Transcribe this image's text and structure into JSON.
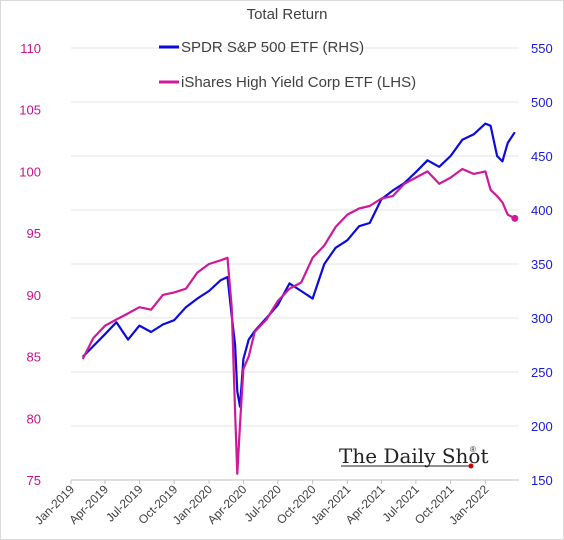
{
  "chart_data": {
    "type": "line",
    "title": "Total Return",
    "x_ticks": [
      "Jan-2019",
      "Apr-2019",
      "Jul-2019",
      "Oct-2019",
      "Jan-2020",
      "Apr-2020",
      "Jul-2020",
      "Oct-2020",
      "Jan-2021",
      "Apr-2021",
      "Jul-2021",
      "Oct-2021",
      "Jan-2022"
    ],
    "x_range": [
      "2019-01-01",
      "2022-03-31"
    ],
    "left_axis": {
      "ticks": [
        75,
        80,
        85,
        90,
        95,
        100,
        105,
        110
      ],
      "ylim": [
        75,
        110
      ],
      "color": "#cc1188"
    },
    "right_axis": {
      "ticks": [
        150,
        200,
        250,
        300,
        350,
        400,
        450,
        500,
        550
      ],
      "ylim": [
        150,
        550
      ],
      "color": "#1a1ad4"
    },
    "grid": "horizontal",
    "series": [
      {
        "name": "SPDR S&P 500 ETF (RHS)",
        "axis": "right",
        "color": "#0b0bdc",
        "x": [
          "2019-02-01",
          "2019-03-01",
          "2019-04-01",
          "2019-05-01",
          "2019-06-01",
          "2019-07-01",
          "2019-08-01",
          "2019-09-01",
          "2019-10-01",
          "2019-11-01",
          "2019-12-01",
          "2020-01-01",
          "2020-02-01",
          "2020-02-19",
          "2020-03-01",
          "2020-03-10",
          "2020-03-16",
          "2020-03-23",
          "2020-04-01",
          "2020-04-15",
          "2020-05-01",
          "2020-06-01",
          "2020-07-01",
          "2020-08-01",
          "2020-09-01",
          "2020-10-01",
          "2020-11-01",
          "2020-12-01",
          "2021-01-01",
          "2021-02-01",
          "2021-03-01",
          "2021-04-01",
          "2021-05-01",
          "2021-06-01",
          "2021-07-01",
          "2021-08-01",
          "2021-09-01",
          "2021-10-01",
          "2021-11-01",
          "2021-12-01",
          "2022-01-01",
          "2022-01-15",
          "2022-02-01",
          "2022-02-15",
          "2022-03-01",
          "2022-03-20"
        ],
        "values": [
          264,
          274,
          285,
          296,
          280,
          293,
          287,
          294,
          298,
          310,
          318,
          325,
          335,
          338,
          302,
          275,
          232,
          218,
          262,
          280,
          288,
          300,
          312,
          332,
          325,
          318,
          350,
          365,
          372,
          385,
          388,
          410,
          418,
          425,
          435,
          446,
          440,
          450,
          465,
          470,
          480,
          478,
          450,
          445,
          462,
          472
        ]
      },
      {
        "name": "iShares High Yield Corp ETF (LHS)",
        "axis": "left",
        "color": "#cc1a99",
        "x": [
          "2019-02-01",
          "2019-03-01",
          "2019-04-01",
          "2019-05-01",
          "2019-06-01",
          "2019-07-01",
          "2019-08-01",
          "2019-09-01",
          "2019-10-01",
          "2019-11-01",
          "2019-12-01",
          "2020-01-01",
          "2020-02-01",
          "2020-02-19",
          "2020-03-01",
          "2020-03-10",
          "2020-03-16",
          "2020-03-23",
          "2020-04-01",
          "2020-04-15",
          "2020-05-01",
          "2020-06-01",
          "2020-07-01",
          "2020-08-01",
          "2020-09-01",
          "2020-10-01",
          "2020-11-01",
          "2020-12-01",
          "2021-01-01",
          "2021-02-01",
          "2021-03-01",
          "2021-04-01",
          "2021-05-01",
          "2021-06-01",
          "2021-07-01",
          "2021-08-01",
          "2021-09-01",
          "2021-10-01",
          "2021-11-01",
          "2021-12-01",
          "2022-01-01",
          "2022-01-15",
          "2022-02-01",
          "2022-02-15",
          "2022-03-01",
          "2022-03-20"
        ],
        "values": [
          84.8,
          86.5,
          87.5,
          88.0,
          88.5,
          89.0,
          88.8,
          90.0,
          90.2,
          90.5,
          91.8,
          92.5,
          92.8,
          93.0,
          89.0,
          80.5,
          75.5,
          79.5,
          84.0,
          85.0,
          87.0,
          88.0,
          89.5,
          90.5,
          91.0,
          93.0,
          94.0,
          95.5,
          96.5,
          97.0,
          97.2,
          97.8,
          98.0,
          99.0,
          99.5,
          100.0,
          99.0,
          99.5,
          100.2,
          99.8,
          100.0,
          98.5,
          98.0,
          97.5,
          96.5,
          96.2
        ]
      }
    ]
  },
  "watermark": "The Daily Shot",
  "watermark_mark": "®"
}
